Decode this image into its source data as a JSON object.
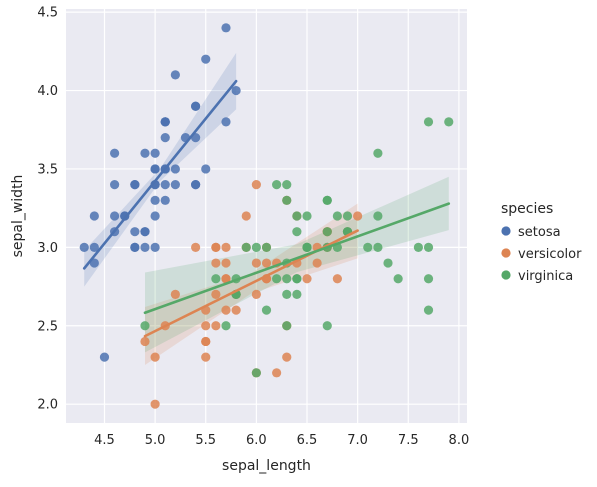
{
  "chart_data": {
    "type": "scatter",
    "title": "",
    "xlabel": "sepal_length",
    "ylabel": "sepal_width",
    "xlim": [
      4.12,
      8.08
    ],
    "ylim": [
      1.88,
      4.52
    ],
    "xticks": [
      "4.5",
      "5.0",
      "5.5",
      "6.0",
      "6.5",
      "7.0",
      "7.5",
      "8.0"
    ],
    "yticks": [
      "2.0",
      "2.5",
      "3.0",
      "3.5",
      "4.0",
      "4.5"
    ],
    "grid": true,
    "legend": {
      "title": "species",
      "position": "right"
    },
    "series": [
      {
        "name": "setosa",
        "color": "#4c72b0",
        "points": [
          [
            5.1,
            3.5
          ],
          [
            4.9,
            3.0
          ],
          [
            4.7,
            3.2
          ],
          [
            4.6,
            3.1
          ],
          [
            5.0,
            3.6
          ],
          [
            5.4,
            3.9
          ],
          [
            4.6,
            3.4
          ],
          [
            5.0,
            3.4
          ],
          [
            4.4,
            2.9
          ],
          [
            4.9,
            3.1
          ],
          [
            5.4,
            3.7
          ],
          [
            4.8,
            3.4
          ],
          [
            4.8,
            3.0
          ],
          [
            4.3,
            3.0
          ],
          [
            5.8,
            4.0
          ],
          [
            5.7,
            4.4
          ],
          [
            5.4,
            3.9
          ],
          [
            5.1,
            3.5
          ],
          [
            5.7,
            3.8
          ],
          [
            5.1,
            3.8
          ],
          [
            5.4,
            3.4
          ],
          [
            5.1,
            3.7
          ],
          [
            4.6,
            3.6
          ],
          [
            5.1,
            3.3
          ],
          [
            4.8,
            3.4
          ],
          [
            5.0,
            3.0
          ],
          [
            5.0,
            3.4
          ],
          [
            5.2,
            3.5
          ],
          [
            5.2,
            3.4
          ],
          [
            4.7,
            3.2
          ],
          [
            4.8,
            3.1
          ],
          [
            5.4,
            3.4
          ],
          [
            5.2,
            4.1
          ],
          [
            5.5,
            4.2
          ],
          [
            4.9,
            3.1
          ],
          [
            5.0,
            3.2
          ],
          [
            5.5,
            3.5
          ],
          [
            4.9,
            3.6
          ],
          [
            4.4,
            3.0
          ],
          [
            5.1,
            3.4
          ],
          [
            5.0,
            3.5
          ],
          [
            4.5,
            2.3
          ],
          [
            4.4,
            3.2
          ],
          [
            5.0,
            3.5
          ],
          [
            5.1,
            3.8
          ],
          [
            4.8,
            3.0
          ],
          [
            5.1,
            3.8
          ],
          [
            4.6,
            3.2
          ],
          [
            5.3,
            3.7
          ],
          [
            5.0,
            3.3
          ]
        ],
        "fit": {
          "x": [
            4.3,
            5.8
          ],
          "y": [
            2.866,
            4.06
          ],
          "ci_upper": [
            2.98,
            4.24
          ],
          "ci_lower": [
            2.75,
            3.88
          ]
        }
      },
      {
        "name": "versicolor",
        "color": "#dd8452",
        "points": [
          [
            7.0,
            3.2
          ],
          [
            6.4,
            3.2
          ],
          [
            6.9,
            3.1
          ],
          [
            5.5,
            2.3
          ],
          [
            6.5,
            2.8
          ],
          [
            5.7,
            2.8
          ],
          [
            6.3,
            3.3
          ],
          [
            4.9,
            2.4
          ],
          [
            6.6,
            2.9
          ],
          [
            5.2,
            2.7
          ],
          [
            5.0,
            2.0
          ],
          [
            5.9,
            3.0
          ],
          [
            6.0,
            2.2
          ],
          [
            6.1,
            2.9
          ],
          [
            5.6,
            2.9
          ],
          [
            6.7,
            3.1
          ],
          [
            5.6,
            3.0
          ],
          [
            5.8,
            2.7
          ],
          [
            6.2,
            2.2
          ],
          [
            5.6,
            2.5
          ],
          [
            5.9,
            3.2
          ],
          [
            6.1,
            2.8
          ],
          [
            6.3,
            2.5
          ],
          [
            6.1,
            2.8
          ],
          [
            6.4,
            2.9
          ],
          [
            6.6,
            3.0
          ],
          [
            6.8,
            2.8
          ],
          [
            6.7,
            3.0
          ],
          [
            6.0,
            2.9
          ],
          [
            5.7,
            2.6
          ],
          [
            5.5,
            2.4
          ],
          [
            5.5,
            2.4
          ],
          [
            5.8,
            2.7
          ],
          [
            6.0,
            2.7
          ],
          [
            5.4,
            3.0
          ],
          [
            6.0,
            3.4
          ],
          [
            6.7,
            3.1
          ],
          [
            6.3,
            2.3
          ],
          [
            5.6,
            3.0
          ],
          [
            5.5,
            2.5
          ],
          [
            5.5,
            2.6
          ],
          [
            6.1,
            3.0
          ],
          [
            5.8,
            2.6
          ],
          [
            5.0,
            2.3
          ],
          [
            5.6,
            2.7
          ],
          [
            5.7,
            3.0
          ],
          [
            5.7,
            2.9
          ],
          [
            6.2,
            2.9
          ],
          [
            5.1,
            2.5
          ],
          [
            5.7,
            2.8
          ]
        ],
        "fit": {
          "x": [
            4.9,
            7.0
          ],
          "y": [
            2.434,
            3.107
          ],
          "ci_upper": [
            2.62,
            3.28
          ],
          "ci_lower": [
            2.25,
            2.93
          ]
        }
      },
      {
        "name": "virginica",
        "color": "#55a868",
        "points": [
          [
            6.3,
            3.3
          ],
          [
            5.8,
            2.7
          ],
          [
            7.1,
            3.0
          ],
          [
            6.3,
            2.9
          ],
          [
            6.5,
            3.0
          ],
          [
            7.6,
            3.0
          ],
          [
            4.9,
            2.5
          ],
          [
            7.3,
            2.9
          ],
          [
            6.7,
            2.5
          ],
          [
            7.2,
            3.6
          ],
          [
            6.5,
            3.2
          ],
          [
            6.4,
            2.7
          ],
          [
            6.8,
            3.0
          ],
          [
            5.7,
            2.5
          ],
          [
            5.8,
            2.8
          ],
          [
            6.4,
            3.2
          ],
          [
            6.5,
            3.0
          ],
          [
            7.7,
            3.8
          ],
          [
            7.7,
            2.6
          ],
          [
            6.0,
            2.2
          ],
          [
            6.9,
            3.2
          ],
          [
            5.6,
            2.8
          ],
          [
            7.7,
            2.8
          ],
          [
            6.3,
            2.7
          ],
          [
            6.7,
            3.3
          ],
          [
            7.2,
            3.2
          ],
          [
            6.2,
            2.8
          ],
          [
            6.1,
            3.0
          ],
          [
            6.4,
            2.8
          ],
          [
            7.2,
            3.0
          ],
          [
            7.4,
            2.8
          ],
          [
            7.9,
            3.8
          ],
          [
            6.4,
            2.8
          ],
          [
            6.3,
            2.8
          ],
          [
            6.1,
            2.6
          ],
          [
            7.7,
            3.0
          ],
          [
            6.3,
            3.4
          ],
          [
            6.4,
            3.1
          ],
          [
            6.0,
            3.0
          ],
          [
            6.9,
            3.1
          ],
          [
            6.7,
            3.1
          ],
          [
            6.9,
            3.1
          ],
          [
            5.8,
            2.7
          ],
          [
            6.8,
            3.2
          ],
          [
            6.7,
            3.3
          ],
          [
            6.7,
            3.0
          ],
          [
            6.3,
            2.5
          ],
          [
            6.5,
            3.0
          ],
          [
            6.2,
            3.4
          ],
          [
            5.9,
            3.0
          ]
        ],
        "fit": {
          "x": [
            4.9,
            7.9
          ],
          "y": [
            2.583,
            3.279
          ],
          "ci_upper": [
            2.84,
            3.45
          ],
          "ci_lower": [
            2.33,
            3.11
          ]
        }
      }
    ]
  }
}
